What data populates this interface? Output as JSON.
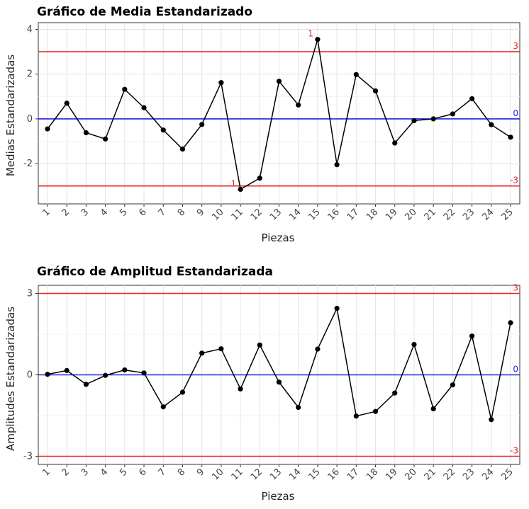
{
  "chart_data": [
    {
      "type": "line",
      "title": "Gráfico de Media Estandarizado",
      "xlabel": "Piezas",
      "ylabel": "Medias Estandarizadas",
      "categories": [
        "1",
        "2",
        "3",
        "4",
        "5",
        "6",
        "7",
        "8",
        "9",
        "10",
        "11",
        "12",
        "13",
        "14",
        "15",
        "16",
        "17",
        "18",
        "19",
        "20",
        "21",
        "22",
        "23",
        "24",
        "25"
      ],
      "values": [
        -0.45,
        0.7,
        -0.62,
        -0.9,
        1.32,
        0.5,
        -0.5,
        -1.35,
        -0.25,
        1.62,
        -3.15,
        -2.65,
        1.68,
        0.62,
        3.55,
        -2.05,
        1.98,
        1.25,
        -1.08,
        -0.08,
        0.0,
        0.22,
        0.9,
        -0.26,
        -0.82
      ],
      "ylim": [
        -3.8,
        4.3
      ],
      "yticks": [
        -2,
        0,
        2,
        4
      ],
      "yticklabels": [
        "-2",
        "0",
        "2",
        "4"
      ],
      "reference_lines": [
        {
          "value": 3,
          "label": "3",
          "color": "#ee2222"
        },
        {
          "value": 0,
          "label": "0",
          "color": "#2222ee"
        },
        {
          "value": -3,
          "label": "-3",
          "color": "#ee2222"
        }
      ],
      "point_annotations": [
        {
          "index": 10,
          "label": "1"
        },
        {
          "index": 14,
          "label": "1"
        }
      ],
      "grid": true
    },
    {
      "type": "line",
      "title": "Gráfico de Amplitud Estandarizada",
      "xlabel": "Piezas",
      "ylabel": "Amplitudes Estandarizadas",
      "categories": [
        "1",
        "2",
        "3",
        "4",
        "5",
        "6",
        "7",
        "8",
        "9",
        "10",
        "11",
        "12",
        "13",
        "14",
        "15",
        "16",
        "17",
        "18",
        "19",
        "20",
        "21",
        "22",
        "23",
        "24",
        "25"
      ],
      "values": [
        0.02,
        0.16,
        -0.35,
        -0.02,
        0.18,
        0.07,
        -1.18,
        -0.64,
        0.8,
        0.96,
        -0.52,
        1.1,
        -0.27,
        -1.2,
        0.95,
        2.45,
        -1.52,
        -1.35,
        -0.67,
        1.12,
        -1.25,
        -0.37,
        1.43,
        -1.65,
        1.92
      ],
      "ylim": [
        -3.3,
        3.3
      ],
      "yticks": [
        -3,
        0,
        3
      ],
      "yticklabels": [
        "-3",
        "0",
        "3"
      ],
      "reference_lines": [
        {
          "value": 3,
          "label": "3",
          "color": "#ee2222"
        },
        {
          "value": 0,
          "label": "0",
          "color": "#2222ee"
        },
        {
          "value": -3,
          "label": "-3",
          "color": "#ee2222"
        }
      ],
      "point_annotations": [],
      "grid": true
    }
  ]
}
